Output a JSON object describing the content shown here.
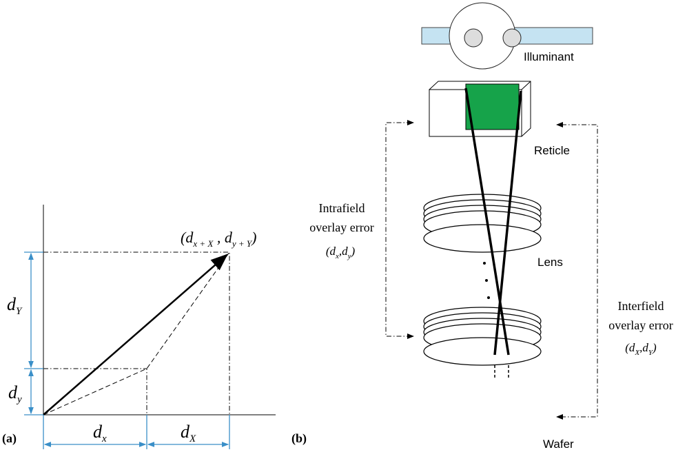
{
  "panel_a": {
    "label": "(a)",
    "dY": {
      "base": "d",
      "sub": "Y"
    },
    "dy": {
      "base": "d",
      "sub": "y"
    },
    "dx": {
      "base": "d",
      "sub": "x"
    },
    "dX": {
      "base": "d",
      "sub": "X"
    },
    "point": {
      "open": "(d",
      "x_sub": "x + X",
      "sep": " , d",
      "y_sub": "y + Y",
      "close": ")"
    }
  },
  "panel_b": {
    "label": "(b)",
    "illuminant": "Illuminant",
    "reticle": "Reticle",
    "lens": "Lens",
    "wafer": "Wafer",
    "intrafield": {
      "line1": "Intrafield",
      "line2": "overlay error",
      "open": "(d",
      "x_sub": "x",
      "sep": ",d",
      "y_sub": "y",
      "close": ")"
    },
    "interfield": {
      "line1": "Interfield",
      "line2": "overlay error",
      "open": "(d",
      "x_sub": "X",
      "sep": ",d",
      "y_sub": "Y",
      "close": ")"
    }
  }
}
